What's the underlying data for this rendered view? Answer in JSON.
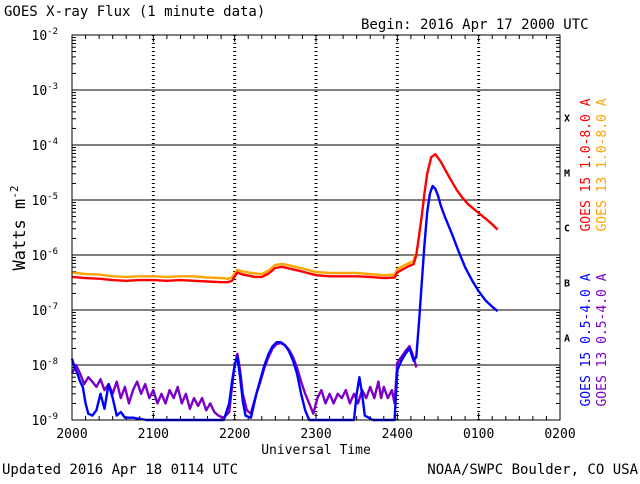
{
  "chart_data": {
    "type": "line",
    "title": "GOES X-ray Flux (1 minute data)",
    "begin_label": "Begin: 2016 Apr 17 2000 UTC",
    "ylabel": "Watts m",
    "ylabel_sup": "-2",
    "xlabel": "Universal Time",
    "updated_label": "Updated 2016 Apr 18 0114 UTC",
    "credit_label": "NOAA/SWPC Boulder, CO USA",
    "y_scale": "log",
    "ylim": [
      "1e-9",
      "1e-2"
    ],
    "xlim": [
      0,
      360
    ],
    "grid": true,
    "x_ticks": [
      {
        "t": 0,
        "label": "2000"
      },
      {
        "t": 60,
        "label": "2100"
      },
      {
        "t": 120,
        "label": "2200"
      },
      {
        "t": 180,
        "label": "2300"
      },
      {
        "t": 240,
        "label": "2400"
      },
      {
        "t": 300,
        "label": "0100"
      },
      {
        "t": 360,
        "label": "0200"
      }
    ],
    "y_ticks": [
      {
        "exp": -2,
        "label": "10",
        "sup": "-2"
      },
      {
        "exp": -3,
        "label": "10",
        "sup": "-3"
      },
      {
        "exp": -4,
        "label": "10",
        "sup": "-4"
      },
      {
        "exp": -5,
        "label": "10",
        "sup": "-5"
      },
      {
        "exp": -6,
        "label": "10",
        "sup": "-6"
      },
      {
        "exp": -7,
        "label": "10",
        "sup": "-7"
      },
      {
        "exp": -8,
        "label": "10",
        "sup": "-8"
      },
      {
        "exp": -9,
        "label": "10",
        "sup": "-9"
      }
    ],
    "flare_classes": [
      {
        "label": "X",
        "exp": -3.5
      },
      {
        "label": "M",
        "exp": -4.5
      },
      {
        "label": "C",
        "exp": -5.5
      },
      {
        "label": "B",
        "exp": -6.5
      },
      {
        "label": "A",
        "exp": -7.5
      }
    ],
    "legend": [
      {
        "label": "GOES 15 1.0-8.0 A",
        "color": "#ff0000"
      },
      {
        "label": "GOES 13 1.0-8.0 A",
        "color": "#ffa500"
      },
      {
        "label": "GOES 15 0.5-4.0 A",
        "color": "#0000ff"
      },
      {
        "label": "GOES 13 0.5-4.0 A",
        "color": "#7a00c8"
      }
    ],
    "series": [
      {
        "name": "GOES 13 1.0-8.0 A",
        "color": "#ffa500",
        "points": [
          [
            0,
            "4.8e-7"
          ],
          [
            10,
            "4.5e-7"
          ],
          [
            20,
            "4.4e-7"
          ],
          [
            30,
            "4.1e-7"
          ],
          [
            40,
            "4.0e-7"
          ],
          [
            50,
            "4.1e-7"
          ],
          [
            60,
            "4.1e-7"
          ],
          [
            70,
            "4.0e-7"
          ],
          [
            80,
            "4.1e-7"
          ],
          [
            90,
            "4.1e-7"
          ],
          [
            100,
            "3.9e-7"
          ],
          [
            110,
            "3.8e-7"
          ],
          [
            115,
            "3.7e-7"
          ],
          [
            118,
            "3.9e-7"
          ],
          [
            120,
            "4.6e-7"
          ],
          [
            122,
            "5.4e-7"
          ],
          [
            126,
            "5.0e-7"
          ],
          [
            135,
            "4.6e-7"
          ],
          [
            140,
            "4.5e-7"
          ],
          [
            145,
            "5.2e-7"
          ],
          [
            150,
            "6.6e-7"
          ],
          [
            155,
            "6.9e-7"
          ],
          [
            160,
            "6.5e-7"
          ],
          [
            170,
            "5.7e-7"
          ],
          [
            180,
            "4.9e-7"
          ],
          [
            190,
            "4.7e-7"
          ],
          [
            200,
            "4.7e-7"
          ],
          [
            210,
            "4.7e-7"
          ],
          [
            220,
            "4.5e-7"
          ],
          [
            230,
            "4.3e-7"
          ],
          [
            238,
            "4.4e-7"
          ],
          [
            240,
            "5.5e-7"
          ],
          [
            244,
            "6.3e-7"
          ],
          [
            248,
            "7.0e-7"
          ],
          [
            252,
            "7.8e-7"
          ],
          [
            253,
            "1.0e-6"
          ]
        ]
      },
      {
        "name": "GOES 15 1.0-8.0 A",
        "color": "#ff0000",
        "points": [
          [
            0,
            "4.0e-7"
          ],
          [
            10,
            "3.8e-7"
          ],
          [
            20,
            "3.7e-7"
          ],
          [
            30,
            "3.5e-7"
          ],
          [
            40,
            "3.4e-7"
          ],
          [
            50,
            "3.5e-7"
          ],
          [
            60,
            "3.5e-7"
          ],
          [
            70,
            "3.4e-7"
          ],
          [
            80,
            "3.5e-7"
          ],
          [
            90,
            "3.4e-7"
          ],
          [
            100,
            "3.3e-7"
          ],
          [
            110,
            "3.2e-7"
          ],
          [
            115,
            "3.2e-7"
          ],
          [
            118,
            "3.4e-7"
          ],
          [
            120,
            "4.1e-7"
          ],
          [
            122,
            "4.8e-7"
          ],
          [
            126,
            "4.4e-7"
          ],
          [
            135,
            "4.0e-7"
          ],
          [
            140,
            "4.0e-7"
          ],
          [
            145,
            "4.6e-7"
          ],
          [
            150,
            "5.8e-7"
          ],
          [
            155,
            "6.1e-7"
          ],
          [
            160,
            "5.7e-7"
          ],
          [
            170,
            "5.0e-7"
          ],
          [
            180,
            "4.3e-7"
          ],
          [
            190,
            "4.1e-7"
          ],
          [
            200,
            "4.1e-7"
          ],
          [
            210,
            "4.1e-7"
          ],
          [
            220,
            "4.0e-7"
          ],
          [
            230,
            "3.8e-7"
          ],
          [
            238,
            "3.9e-7"
          ],
          [
            240,
            "4.8e-7"
          ],
          [
            244,
            "5.5e-7"
          ],
          [
            248,
            "6.2e-7"
          ],
          [
            252,
            "6.8e-7"
          ],
          [
            254,
            "1.0e-6"
          ],
          [
            256,
            "2.2e-6"
          ],
          [
            258,
            "5.0e-6"
          ],
          [
            260,
            "1.3e-5"
          ],
          [
            262,
            "3.0e-5"
          ],
          [
            265,
            "6.0e-5"
          ],
          [
            268,
            "6.8e-5"
          ],
          [
            272,
            "5.0e-5"
          ],
          [
            276,
            "3.3e-5"
          ],
          [
            280,
            "2.2e-5"
          ],
          [
            284,
            "1.5e-5"
          ],
          [
            288,
            "1.1e-5"
          ],
          [
            292,
            "8.5e-6"
          ],
          [
            296,
            "7.0e-6"
          ],
          [
            300,
            "5.8e-6"
          ],
          [
            305,
            "4.6e-6"
          ],
          [
            310,
            "3.6e-6"
          ],
          [
            314,
            "2.9e-6"
          ]
        ]
      },
      {
        "name": "GOES 13 0.5-4.0 A",
        "color": "#7a00c8",
        "points": [
          [
            0,
            "7e-9"
          ],
          [
            3,
            "1.0e-8"
          ],
          [
            6,
            "7e-9"
          ],
          [
            9,
            "4.5e-9"
          ],
          [
            12,
            "6e-9"
          ],
          [
            15,
            "5e-9"
          ],
          [
            18,
            "4e-9"
          ],
          [
            21,
            "5.5e-9"
          ],
          [
            24,
            "3.5e-9"
          ],
          [
            27,
            "4.5e-9"
          ],
          [
            30,
            "3e-9"
          ],
          [
            33,
            "5e-9"
          ],
          [
            36,
            "2.5e-9"
          ],
          [
            39,
            "4e-9"
          ],
          [
            42,
            "2e-9"
          ],
          [
            45,
            "3.5e-9"
          ],
          [
            48,
            "5e-9"
          ],
          [
            51,
            "3e-9"
          ],
          [
            54,
            "4.5e-9"
          ],
          [
            57,
            "2.5e-9"
          ],
          [
            60,
            "3.5e-9"
          ],
          [
            63,
            "2e-9"
          ],
          [
            66,
            "3e-9"
          ],
          [
            69,
            "2e-9"
          ],
          [
            72,
            "3.5e-9"
          ],
          [
            75,
            "2.5e-9"
          ],
          [
            78,
            "4e-9"
          ],
          [
            81,
            "2e-9"
          ],
          [
            84,
            "3e-9"
          ],
          [
            87,
            "1.6e-9"
          ],
          [
            90,
            "2.5e-9"
          ],
          [
            93,
            "1.8e-9"
          ],
          [
            96,
            "2.5e-9"
          ],
          [
            99,
            "1.5e-9"
          ],
          [
            102,
            "2e-9"
          ],
          [
            105,
            "1.4e-9"
          ],
          [
            108,
            "1.2e-9"
          ],
          [
            112,
            "1.1e-9"
          ],
          [
            116,
            "1.4e-9"
          ],
          [
            118,
            "4e-9"
          ],
          [
            120,
            "1.0e-8"
          ],
          [
            122,
            "1.6e-8"
          ],
          [
            124,
            "8e-9"
          ],
          [
            126,
            "3e-9"
          ],
          [
            129,
            "1.5e-9"
          ],
          [
            132,
            "1.3e-9"
          ],
          [
            134,
            "2e-9"
          ],
          [
            136,
            "3e-9"
          ],
          [
            139,
            "5e-9"
          ],
          [
            142,
            "9e-9"
          ],
          [
            145,
            "1.4e-8"
          ],
          [
            148,
            "2.0e-8"
          ],
          [
            151,
            "2.4e-8"
          ],
          [
            154,
            "2.5e-8"
          ],
          [
            157,
            "2.3e-8"
          ],
          [
            160,
            "1.9e-8"
          ],
          [
            163,
            "1.4e-8"
          ],
          [
            166,
            "9e-9"
          ],
          [
            169,
            "5e-9"
          ],
          [
            172,
            "3e-9"
          ],
          [
            175,
            "2e-9"
          ],
          [
            178,
            "1.3e-9"
          ],
          [
            181,
            "2.5e-9"
          ],
          [
            184,
            "3.5e-9"
          ],
          [
            187,
            "2e-9"
          ],
          [
            190,
            "3e-9"
          ],
          [
            193,
            "2e-9"
          ],
          [
            196,
            "3e-9"
          ],
          [
            199,
            "2.5e-9"
          ],
          [
            202,
            "3.5e-9"
          ],
          [
            205,
            "2e-9"
          ],
          [
            208,
            "3e-9"
          ],
          [
            211,
            "2e-9"
          ],
          [
            214,
            "3.5e-9"
          ],
          [
            217,
            "2.5e-9"
          ],
          [
            220,
            "4e-9"
          ],
          [
            223,
            "2.5e-9"
          ],
          [
            226,
            "5e-9"
          ],
          [
            228,
            "2.5e-9"
          ],
          [
            230,
            "4e-9"
          ],
          [
            233,
            "2.5e-9"
          ],
          [
            236,
            "3.5e-9"
          ],
          [
            238,
            "2e-9"
          ],
          [
            240,
            "1.1e-8"
          ],
          [
            243,
            "1.4e-8"
          ],
          [
            246,
            "1.8e-8"
          ],
          [
            249,
            "2.2e-8"
          ],
          [
            252,
            "1.4e-8"
          ],
          [
            254,
            "9e-9"
          ]
        ]
      },
      {
        "name": "GOES 15 0.5-4.0 A",
        "color": "#0000ff",
        "points": [
          [
            0,
            "1.3e-8"
          ],
          [
            2,
            "9e-9"
          ],
          [
            4,
            "7e-9"
          ],
          [
            6,
            "5e-9"
          ],
          [
            8,
            "4e-9"
          ],
          [
            10,
            "2e-9"
          ],
          [
            12,
            "1.3e-9"
          ],
          [
            15,
            "1.2e-9"
          ],
          [
            18,
            "1.5e-9"
          ],
          [
            21,
            "3e-9"
          ],
          [
            24,
            "1.6e-9"
          ],
          [
            27,
            "4.5e-9"
          ],
          [
            30,
            "2.5e-9"
          ],
          [
            33,
            "1.2e-9"
          ],
          [
            36,
            "1.4e-9"
          ],
          [
            39,
            "1.1e-9"
          ],
          [
            45,
            "1.1e-9"
          ],
          [
            55,
            "1.0e-9"
          ],
          [
            65,
            "1.0e-9"
          ],
          [
            75,
            "1.0e-9"
          ],
          [
            85,
            "1.0e-9"
          ],
          [
            95,
            "1.0e-9"
          ],
          [
            105,
            "1.0e-9"
          ],
          [
            112,
            "1.0e-9"
          ],
          [
            116,
            "2e-9"
          ],
          [
            118,
            "5e-9"
          ],
          [
            120,
            "1.0e-8"
          ],
          [
            122,
            "1.4e-8"
          ],
          [
            124,
            "6e-9"
          ],
          [
            126,
            "2.2e-9"
          ],
          [
            128,
            "1.2e-9"
          ],
          [
            132,
            "1.1e-9"
          ],
          [
            134,
            "1.8e-9"
          ],
          [
            136,
            "3e-9"
          ],
          [
            139,
            "5.5e-9"
          ],
          [
            142,
            "1.0e-8"
          ],
          [
            145,
            "1.6e-8"
          ],
          [
            148,
            "2.2e-8"
          ],
          [
            151,
            "2.6e-8"
          ],
          [
            154,
            "2.6e-8"
          ],
          [
            157,
            "2.3e-8"
          ],
          [
            160,
            "1.8e-8"
          ],
          [
            163,
            "1.2e-8"
          ],
          [
            166,
            "7e-9"
          ],
          [
            169,
            "3e-9"
          ],
          [
            172,
            "1.5e-9"
          ],
          [
            175,
            "1.0e-9"
          ],
          [
            182,
            "1.0e-9"
          ],
          [
            190,
            "1.0e-9"
          ],
          [
            200,
            "1.0e-9"
          ],
          [
            208,
            "1.0e-9"
          ],
          [
            210,
            "3e-9"
          ],
          [
            212,
            "6e-9"
          ],
          [
            214,
            "3e-9"
          ],
          [
            216,
            "1.2e-9"
          ],
          [
            222,
            "1.0e-9"
          ],
          [
            230,
            "1.0e-9"
          ],
          [
            238,
            "1.0e-9"
          ],
          [
            240,
            "8e-9"
          ],
          [
            243,
            "1.2e-8"
          ],
          [
            246,
            "1.6e-8"
          ],
          [
            249,
            "2.0e-8"
          ],
          [
            252,
            "1.2e-8"
          ],
          [
            254,
            "1.4e-8"
          ],
          [
            256,
            "6e-8"
          ],
          [
            258,
            "3e-7"
          ],
          [
            260,
            "1.5e-6"
          ],
          [
            262,
            "6e-6"
          ],
          [
            264,
            "1.3e-5"
          ],
          [
            266,
            "1.8e-5"
          ],
          [
            268,
            "1.6e-5"
          ],
          [
            270,
            "1.2e-5"
          ],
          [
            272,
            "8e-6"
          ],
          [
            275,
            "5e-6"
          ],
          [
            280,
            "2.5e-6"
          ],
          [
            285,
            "1.2e-6"
          ],
          [
            290,
            "6e-7"
          ],
          [
            295,
            "3.5e-7"
          ],
          [
            300,
            "2.2e-7"
          ],
          [
            305,
            "1.5e-7"
          ],
          [
            310,
            "1.15e-7"
          ],
          [
            314,
            "9.5e-8"
          ]
        ]
      }
    ]
  }
}
